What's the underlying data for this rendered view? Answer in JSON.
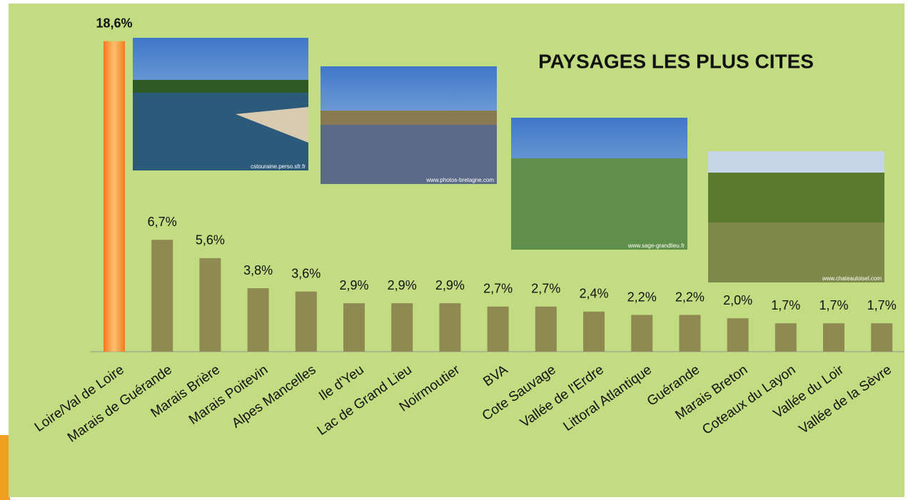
{
  "chart_data": {
    "type": "bar",
    "title": "PAYSAGES LES PLUS CITES",
    "categories": [
      "Loire/Val de Loire",
      "Marais de Guérande",
      "Marais Brière",
      "Marais Poitevin",
      "Alpes Mancelles",
      "Ile d'Yeu",
      "Lac de Grand Lieu",
      "Noirmoutier",
      "BVA",
      "Cote Sauvage",
      "Vallée de l'Erdre",
      "Littoral Atlantique",
      "Guérande",
      "Marais Breton",
      "Coteaux du Layon",
      "Vallée du Loir",
      "Vallée de la Sèvre"
    ],
    "values": [
      18.6,
      6.7,
      5.6,
      3.8,
      3.6,
      2.9,
      2.9,
      2.9,
      2.7,
      2.7,
      2.4,
      2.2,
      2.2,
      2.0,
      1.7,
      1.7,
      1.7
    ],
    "value_labels": [
      "18,6%",
      "6,7%",
      "5,6%",
      "3,8%",
      "3,6%",
      "2,9%",
      "2,9%",
      "2,9%",
      "2,7%",
      "2,7%",
      "2,4%",
      "2,2%",
      "2,2%",
      "2,0%",
      "1,7%",
      "1,7%",
      "1,7%"
    ],
    "colors": [
      "#f5922f",
      "#8f8a52",
      "#8f8a52",
      "#8f8a52",
      "#8f8a52",
      "#8f8a52",
      "#8f8a52",
      "#8f8a52",
      "#8f8a52",
      "#8f8a52",
      "#8f8a52",
      "#8f8a52",
      "#8f8a52",
      "#8f8a52",
      "#8f8a52",
      "#8f8a52",
      "#8f8a52"
    ],
    "label_colors": [
      "#b01d10",
      "#111111",
      "#111111",
      "#111111",
      "#111111",
      "#111111",
      "#111111",
      "#111111",
      "#111111",
      "#111111",
      "#111111",
      "#111111",
      "#111111",
      "#111111",
      "#111111",
      "#111111",
      "#111111"
    ],
    "ylim": [
      0,
      20
    ],
    "image_credits": [
      "cstouraine.perso.sfr.fr",
      "www.photos-bretagne.com",
      "www.sage-grandlieu.fr",
      "www.chateauloisel.com"
    ]
  }
}
